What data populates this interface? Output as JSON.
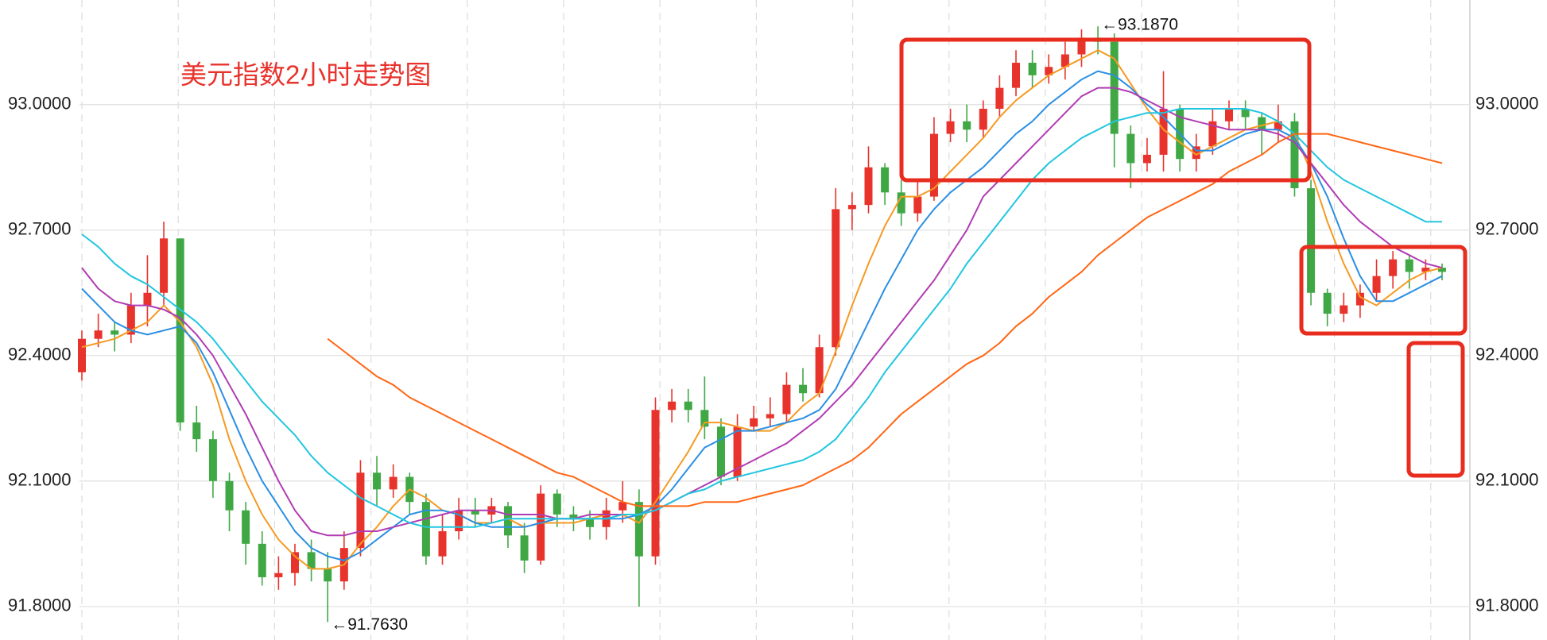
{
  "chart_data": {
    "type": "candlestick",
    "title": "美元指数2小时走势图",
    "up_color": "#e8332c",
    "down_color": "#3fa845",
    "grid": true,
    "ylim": [
      91.72,
      93.25
    ],
    "yticks": [
      {
        "value": 91.8,
        "label": "91.8000"
      },
      {
        "value": 92.1,
        "label": "92.1000"
      },
      {
        "value": 92.4,
        "label": "92.4000"
      },
      {
        "value": 92.7,
        "label": "92.7000"
      },
      {
        "value": 93.0,
        "label": "93.0000"
      }
    ],
    "annotations": [
      {
        "label": "←93.1870",
        "value": 93.187
      },
      {
        "label": "←91.7630",
        "value": 91.763
      }
    ],
    "open": [
      92.36,
      92.44,
      92.46,
      92.45,
      92.52,
      92.55,
      92.68,
      92.24,
      92.2,
      92.1,
      92.03,
      91.95,
      91.87,
      91.88,
      91.93,
      91.89,
      91.86,
      91.94,
      92.12,
      92.08,
      92.11,
      92.05,
      91.92,
      91.98,
      92.03,
      92.02,
      92.04,
      91.97,
      91.91,
      92.07,
      92.02,
      92.01,
      91.99,
      92.03,
      92.05,
      91.92,
      92.27,
      92.29,
      92.27,
      92.23,
      92.11,
      92.23,
      92.25,
      92.26,
      92.33,
      92.31,
      92.42,
      92.75,
      92.76,
      92.85,
      92.79,
      92.74,
      92.78,
      92.93,
      92.96,
      92.94,
      92.99,
      93.04,
      93.1,
      93.07,
      93.09,
      93.12,
      93.16,
      93.15,
      92.93,
      92.86,
      92.88,
      92.99,
      92.87,
      92.9,
      92.96,
      92.99,
      92.97,
      92.94,
      92.96,
      92.8,
      92.55,
      92.5,
      92.52,
      92.55,
      92.59,
      92.63,
      92.6,
      92.61
    ],
    "high": [
      92.46,
      92.5,
      92.48,
      92.55,
      92.64,
      92.72,
      92.68,
      92.28,
      92.22,
      92.12,
      92.05,
      91.98,
      91.92,
      91.95,
      91.96,
      91.93,
      91.98,
      92.15,
      92.16,
      92.14,
      92.12,
      92.07,
      92.02,
      92.06,
      92.06,
      92.06,
      92.05,
      92.0,
      92.09,
      92.08,
      92.04,
      92.03,
      92.06,
      92.1,
      92.08,
      92.3,
      92.32,
      92.32,
      92.35,
      92.25,
      92.26,
      92.28,
      92.3,
      92.36,
      92.37,
      92.45,
      92.8,
      92.79,
      92.9,
      92.86,
      92.82,
      92.82,
      92.97,
      92.99,
      93.0,
      93.01,
      93.07,
      93.13,
      93.13,
      93.12,
      93.15,
      93.18,
      93.187,
      93.17,
      92.95,
      92.92,
      93.08,
      93.0,
      92.93,
      92.99,
      93.01,
      93.01,
      92.98,
      93.0,
      92.98,
      92.82,
      92.56,
      92.55,
      92.57,
      92.63,
      92.65,
      92.64,
      92.63,
      92.62
    ],
    "low": [
      92.34,
      92.42,
      92.41,
      92.43,
      92.47,
      92.52,
      92.22,
      92.17,
      92.06,
      91.98,
      91.9,
      91.85,
      91.84,
      91.85,
      91.86,
      91.763,
      91.84,
      91.92,
      92.04,
      92.06,
      92.02,
      91.9,
      91.9,
      91.96,
      91.99,
      92.0,
      91.94,
      91.88,
      91.9,
      91.99,
      91.98,
      91.96,
      91.96,
      92.0,
      91.8,
      91.9,
      92.24,
      92.24,
      92.2,
      92.09,
      92.1,
      92.22,
      92.23,
      92.24,
      92.29,
      92.3,
      92.4,
      92.7,
      92.74,
      92.76,
      92.71,
      92.72,
      92.77,
      92.91,
      92.91,
      92.92,
      92.97,
      93.02,
      93.04,
      93.05,
      93.06,
      93.09,
      93.12,
      92.85,
      92.8,
      92.84,
      92.84,
      92.84,
      92.84,
      92.88,
      92.94,
      92.94,
      92.88,
      92.91,
      92.78,
      92.52,
      92.47,
      92.48,
      92.49,
      92.53,
      92.56,
      92.56,
      92.58,
      92.58
    ],
    "close": [
      92.44,
      92.46,
      92.45,
      92.52,
      92.55,
      92.68,
      92.24,
      92.2,
      92.1,
      92.03,
      91.95,
      91.87,
      91.88,
      91.93,
      91.89,
      91.86,
      91.94,
      92.12,
      92.08,
      92.11,
      92.05,
      91.92,
      91.98,
      92.03,
      92.02,
      92.04,
      91.97,
      91.91,
      92.07,
      92.02,
      92.01,
      91.99,
      92.03,
      92.05,
      91.92,
      92.27,
      92.29,
      92.27,
      92.23,
      92.11,
      92.23,
      92.25,
      92.26,
      92.33,
      92.31,
      92.42,
      92.75,
      92.76,
      92.85,
      92.79,
      92.74,
      92.78,
      92.93,
      92.96,
      92.94,
      92.99,
      93.04,
      93.1,
      93.07,
      93.09,
      93.12,
      93.16,
      93.15,
      92.93,
      92.86,
      92.88,
      92.99,
      92.87,
      92.9,
      92.96,
      92.99,
      92.97,
      92.94,
      92.96,
      92.8,
      92.55,
      92.5,
      92.52,
      92.55,
      92.59,
      92.63,
      92.6,
      92.61,
      92.6
    ],
    "series": [
      {
        "color": "#f59a23",
        "values": [
          92.42,
          92.43,
          92.44,
          92.46,
          92.48,
          92.52,
          92.48,
          92.42,
          92.33,
          92.2,
          92.1,
          92.02,
          91.96,
          91.92,
          91.89,
          91.89,
          91.9,
          91.95,
          91.99,
          92.04,
          92.08,
          92.06,
          92.03,
          92.02,
          92.0,
          92.0,
          92.01,
          91.99,
          92.0,
          92.0,
          92.0,
          92.01,
          92.02,
          92.02,
          92.0,
          92.05,
          92.11,
          92.17,
          92.24,
          92.24,
          92.23,
          92.22,
          92.22,
          92.24,
          92.28,
          92.31,
          92.41,
          92.52,
          92.62,
          92.71,
          92.78,
          92.78,
          92.8,
          92.84,
          92.88,
          92.92,
          92.97,
          93.01,
          93.04,
          93.07,
          93.09,
          93.11,
          93.13,
          93.11,
          93.05,
          92.99,
          92.94,
          92.91,
          92.88,
          92.9,
          92.92,
          92.94,
          92.95,
          92.96,
          92.93,
          92.84,
          92.72,
          92.62,
          92.54,
          92.52,
          92.55,
          92.58,
          92.6,
          92.61
        ]
      },
      {
        "color": "#2b8fe3",
        "values": [
          92.56,
          92.52,
          92.48,
          92.46,
          92.45,
          92.46,
          92.47,
          92.43,
          92.36,
          92.27,
          92.18,
          92.1,
          92.04,
          91.98,
          91.94,
          91.92,
          91.91,
          91.93,
          91.96,
          91.99,
          92.02,
          92.03,
          92.03,
          92.02,
          92.0,
          91.99,
          91.99,
          91.99,
          92.0,
          92.01,
          92.01,
          92.01,
          92.01,
          92.01,
          92.02,
          92.04,
          92.08,
          92.13,
          92.18,
          92.2,
          92.22,
          92.22,
          92.23,
          92.24,
          92.25,
          92.27,
          92.32,
          92.4,
          92.48,
          92.56,
          92.63,
          92.7,
          92.75,
          92.79,
          92.82,
          92.85,
          92.89,
          92.93,
          92.96,
          93.0,
          93.03,
          93.06,
          93.08,
          93.07,
          93.04,
          93.0,
          92.97,
          92.93,
          92.89,
          92.89,
          92.91,
          92.93,
          92.94,
          92.94,
          92.92,
          92.86,
          92.78,
          92.68,
          92.59,
          92.53,
          92.53,
          92.55,
          92.57,
          92.59
        ]
      },
      {
        "color": "#b03cb3",
        "values": [
          92.61,
          92.56,
          92.53,
          92.52,
          92.52,
          92.51,
          92.49,
          92.45,
          92.4,
          92.33,
          92.26,
          92.18,
          92.1,
          92.03,
          91.98,
          91.97,
          91.97,
          91.98,
          91.98,
          91.99,
          92.0,
          92.01,
          92.02,
          92.03,
          92.03,
          92.03,
          92.02,
          92.02,
          92.02,
          92.01,
          92.01,
          92.02,
          92.02,
          92.02,
          92.02,
          92.03,
          92.05,
          92.07,
          92.09,
          92.11,
          92.13,
          92.15,
          92.17,
          92.19,
          92.22,
          92.25,
          92.29,
          92.33,
          92.38,
          92.43,
          92.48,
          92.53,
          92.58,
          92.64,
          92.7,
          92.78,
          92.82,
          92.86,
          92.9,
          92.94,
          92.98,
          93.02,
          93.04,
          93.04,
          93.03,
          93.01,
          92.99,
          92.97,
          92.96,
          92.95,
          92.94,
          92.94,
          92.94,
          92.93,
          92.91,
          92.86,
          92.81,
          92.76,
          92.72,
          92.69,
          92.66,
          92.64,
          92.62,
          92.61
        ]
      },
      {
        "color": "#22c6e0",
        "values": [
          92.69,
          92.66,
          92.62,
          92.59,
          92.57,
          92.54,
          92.51,
          92.48,
          92.44,
          92.39,
          92.34,
          92.29,
          92.25,
          92.21,
          92.16,
          92.12,
          92.09,
          92.06,
          92.04,
          92.02,
          92.0,
          91.99,
          91.99,
          91.99,
          91.99,
          92.0,
          92.01,
          92.01,
          92.01,
          92.01,
          92.01,
          92.01,
          92.01,
          92.02,
          92.02,
          92.03,
          92.05,
          92.07,
          92.08,
          92.1,
          92.11,
          92.12,
          92.13,
          92.14,
          92.15,
          92.17,
          92.2,
          92.25,
          92.3,
          92.36,
          92.41,
          92.46,
          92.51,
          92.56,
          92.62,
          92.67,
          92.72,
          92.77,
          92.82,
          92.86,
          92.89,
          92.92,
          92.94,
          92.96,
          92.97,
          92.98,
          92.98,
          92.99,
          92.99,
          92.99,
          92.99,
          92.99,
          92.98,
          92.96,
          92.93,
          92.89,
          92.85,
          92.82,
          92.8,
          92.78,
          92.76,
          92.74,
          92.72,
          92.72
        ]
      },
      {
        "color": "#ff6614",
        "values": [
          null,
          null,
          null,
          null,
          null,
          null,
          null,
          null,
          null,
          null,
          null,
          null,
          null,
          null,
          null,
          92.44,
          92.41,
          92.38,
          92.35,
          92.33,
          92.3,
          92.28,
          92.26,
          92.24,
          92.22,
          92.2,
          92.18,
          92.16,
          92.14,
          92.12,
          92.11,
          92.09,
          92.07,
          92.05,
          92.04,
          92.04,
          92.04,
          92.04,
          92.05,
          92.05,
          92.05,
          92.06,
          92.07,
          92.08,
          92.09,
          92.11,
          92.13,
          92.15,
          92.18,
          92.22,
          92.26,
          92.29,
          92.32,
          92.35,
          92.38,
          92.4,
          92.43,
          92.47,
          92.5,
          92.54,
          92.57,
          92.6,
          92.64,
          92.67,
          92.7,
          92.73,
          92.75,
          92.77,
          92.79,
          92.81,
          92.84,
          92.86,
          92.88,
          92.91,
          92.93,
          92.93,
          92.93,
          92.92,
          92.91,
          92.9,
          92.89,
          92.88,
          92.87,
          92.86
        ]
      }
    ]
  }
}
